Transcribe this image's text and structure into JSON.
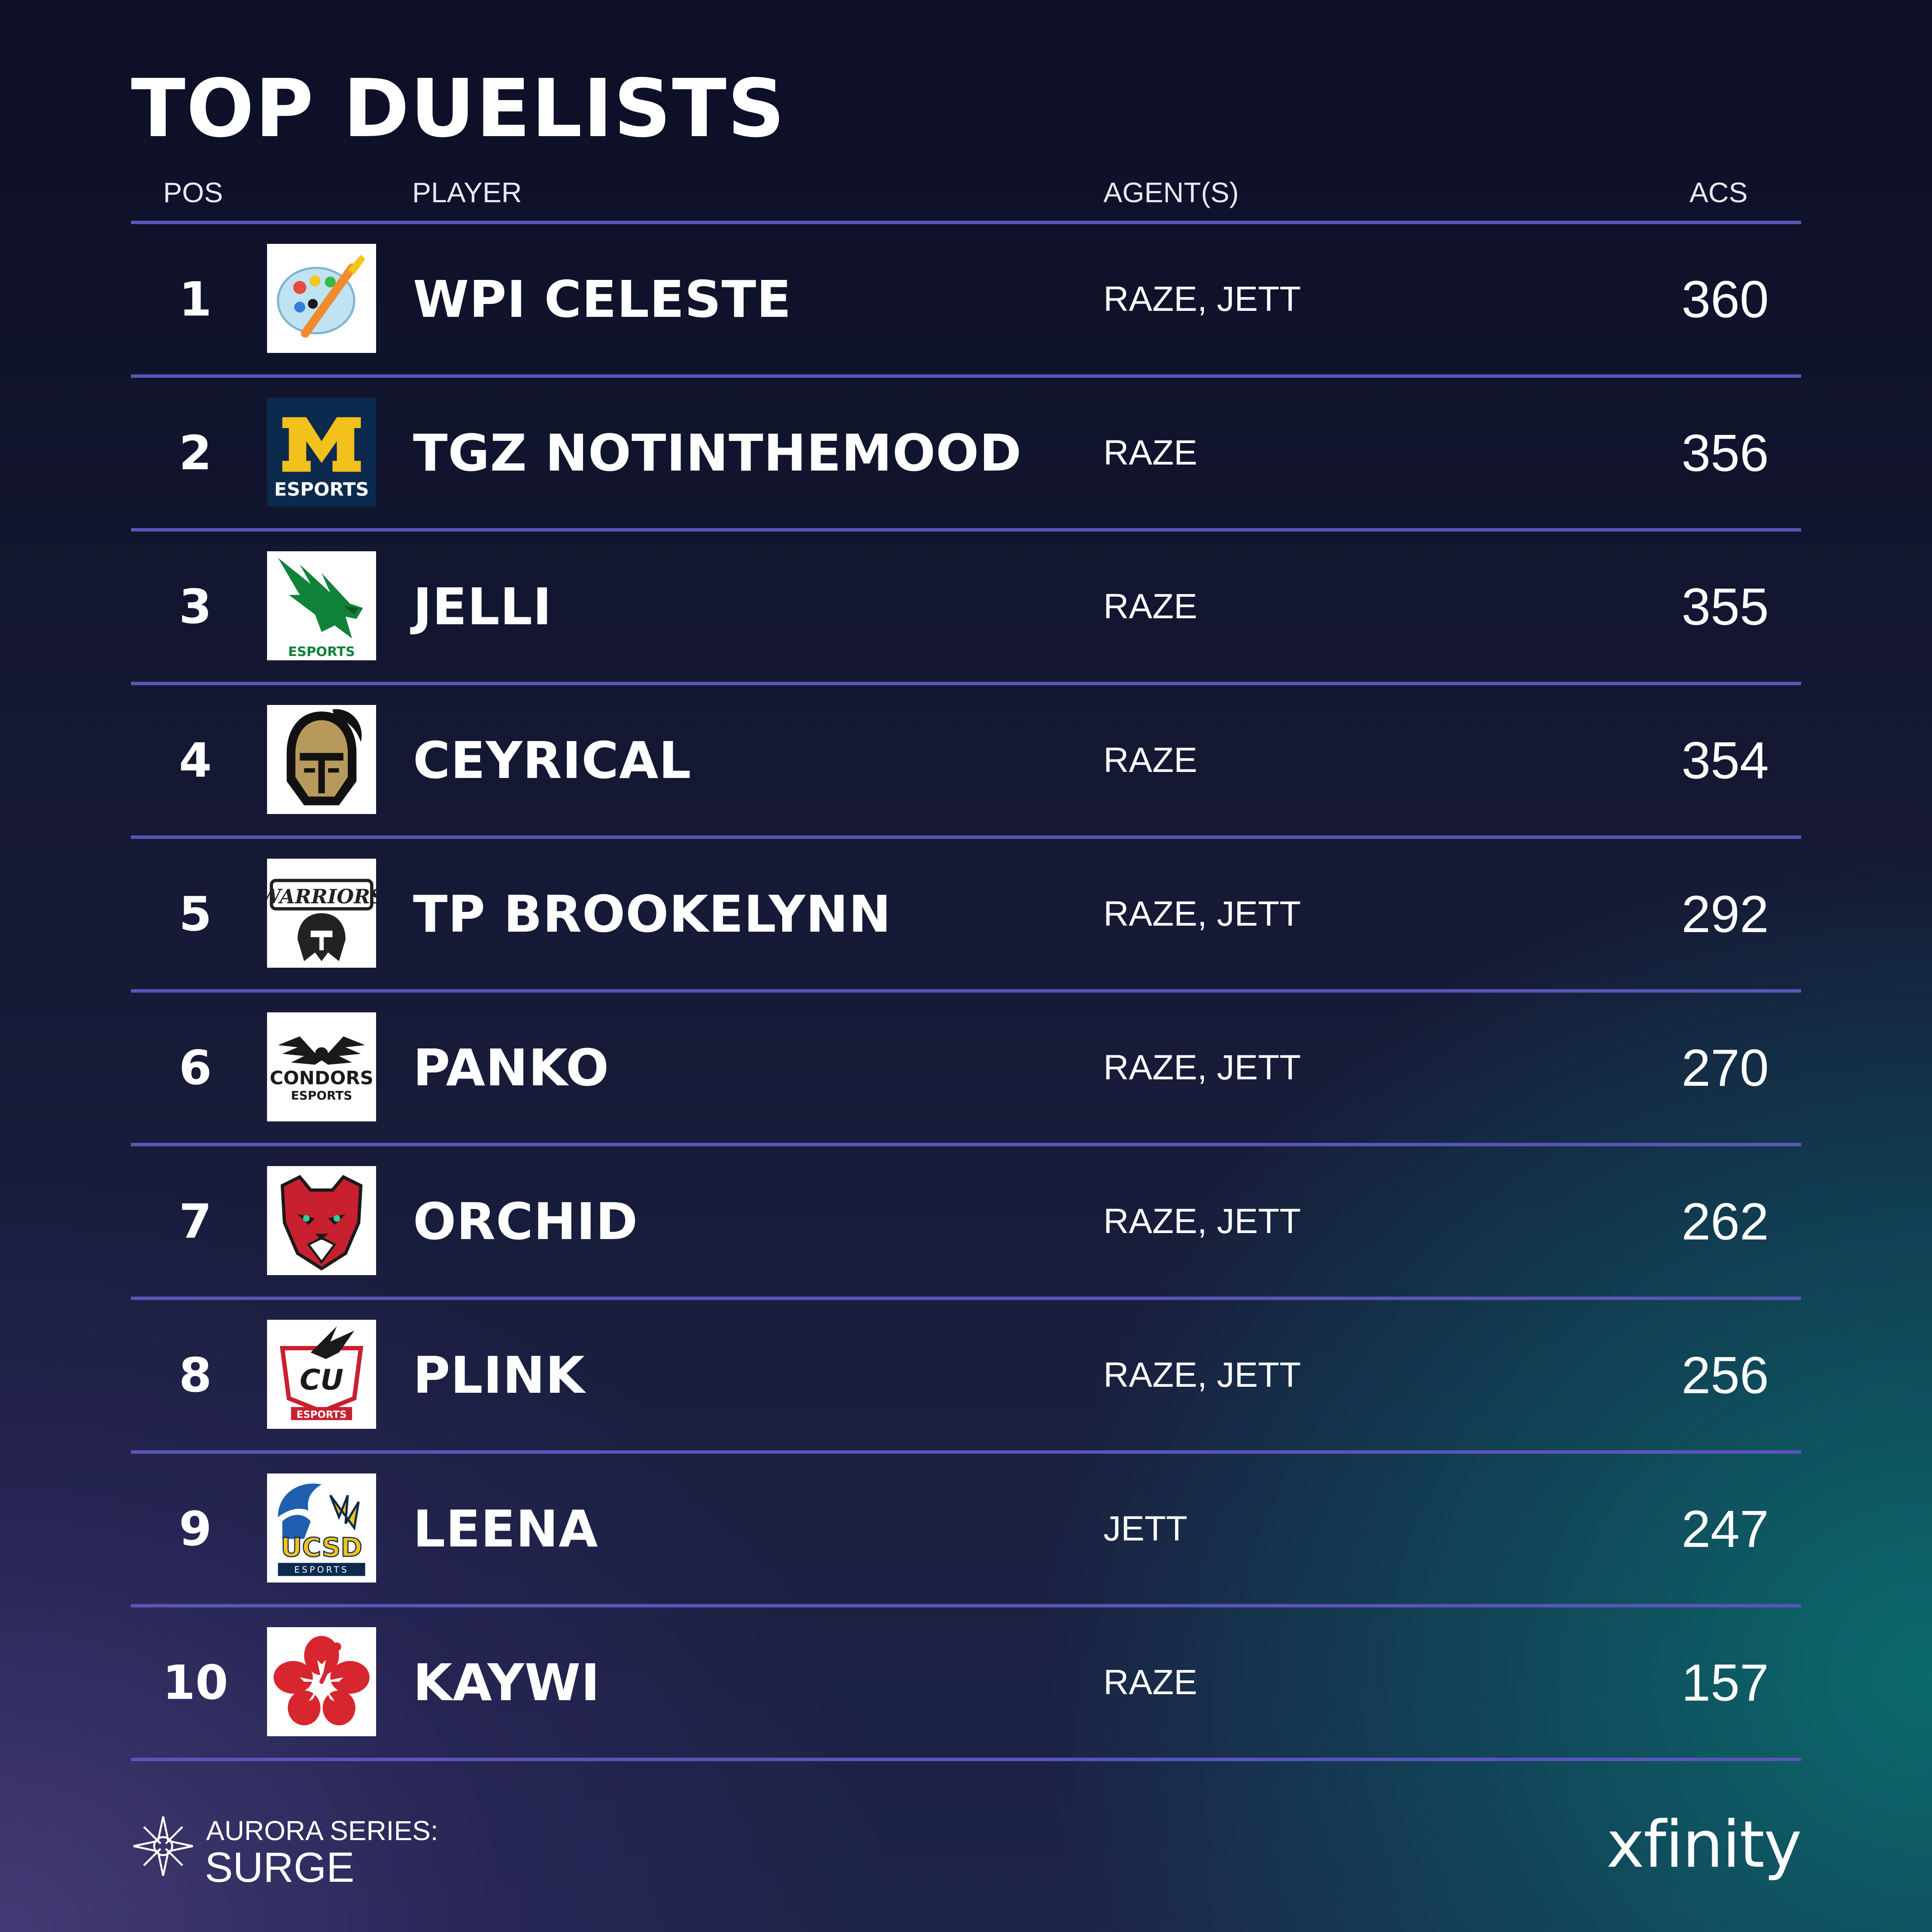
{
  "title": "TOP DUELISTS",
  "headers": {
    "pos": "POS",
    "player": "PLAYER",
    "agents": "AGENT(S)",
    "acs": "ACS"
  },
  "rows": [
    {
      "pos": "1",
      "player": "WPI CELESTE",
      "agents": "RAZE, JETT",
      "acs": "360",
      "logo": "palette-logo"
    },
    {
      "pos": "2",
      "player": "TGZ NOTINTHEMOOD",
      "agents": "RAZE",
      "acs": "356",
      "logo": "michigan-esports-logo",
      "logo_text": "ESPORTS"
    },
    {
      "pos": "3",
      "player": "JELLI",
      "agents": "RAZE",
      "acs": "355",
      "logo": "eagle-esports-logo",
      "logo_text": "ESPORTS"
    },
    {
      "pos": "4",
      "player": "CEYRICAL",
      "agents": "RAZE",
      "acs": "354",
      "logo": "knight-helmet-logo"
    },
    {
      "pos": "5",
      "player": "TP BROOKELYNN",
      "agents": "RAZE, JETT",
      "acs": "292",
      "logo": "waterloo-warriors-logo",
      "logo_text": "WARRIORS"
    },
    {
      "pos": "6",
      "player": "PANKO",
      "agents": "RAZE, JETT",
      "acs": "270",
      "logo": "condors-esports-logo",
      "logo_text": "CONDORS",
      "logo_subtext": "ESPORTS"
    },
    {
      "pos": "7",
      "player": "ORCHID",
      "agents": "RAZE, JETT",
      "acs": "262",
      "logo": "cougar-logo"
    },
    {
      "pos": "8",
      "player": "PLINK",
      "agents": "RAZE, JETT",
      "acs": "256",
      "logo": "cu-esports-logo",
      "logo_text": "CU",
      "logo_subtext": "ESPORTS"
    },
    {
      "pos": "9",
      "player": "LEENA",
      "agents": "JETT",
      "acs": "247",
      "logo": "ucsd-esports-logo",
      "logo_text": "UCSD",
      "logo_subtext": "ESPORTS"
    },
    {
      "pos": "10",
      "player": "KAYWI",
      "agents": "RAZE",
      "acs": "157",
      "logo": "hibiscus-logo"
    }
  ],
  "footer": {
    "brand_top": "AURORA SERIES:",
    "brand_bottom": "SURGE",
    "sponsor": "xfinity"
  },
  "colors": {
    "divider": "#5a55b8",
    "text": "#ffffff",
    "michigan_blue": "#0b2a4e",
    "michigan_maize": "#f3c11c"
  }
}
